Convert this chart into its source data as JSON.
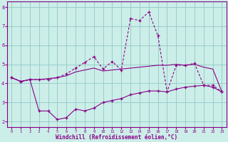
{
  "x": [
    0,
    1,
    2,
    3,
    4,
    5,
    6,
    7,
    8,
    9,
    10,
    11,
    12,
    13,
    14,
    15,
    16,
    17,
    18,
    19,
    20,
    21,
    22,
    23
  ],
  "line1": [
    4.3,
    4.1,
    4.2,
    2.55,
    2.55,
    2.1,
    2.2,
    2.65,
    2.55,
    2.7,
    3.0,
    3.1,
    3.2,
    3.4,
    3.5,
    3.6,
    3.6,
    3.55,
    3.7,
    3.8,
    3.85,
    3.9,
    3.8,
    3.55
  ],
  "line2": [
    4.3,
    4.1,
    4.2,
    4.2,
    4.2,
    4.3,
    4.5,
    4.8,
    5.1,
    5.4,
    4.75,
    5.15,
    4.7,
    7.4,
    7.3,
    7.75,
    6.5,
    3.55,
    4.95,
    4.95,
    5.05,
    3.9,
    3.9,
    3.55
  ],
  "line3": [
    4.3,
    4.1,
    4.2,
    4.2,
    4.25,
    4.3,
    4.4,
    4.6,
    4.7,
    4.8,
    4.65,
    4.7,
    4.75,
    4.8,
    4.85,
    4.9,
    4.95,
    4.95,
    5.0,
    4.95,
    5.0,
    4.85,
    4.75,
    3.55
  ],
  "color": "#880088",
  "bg_color": "#cceee8",
  "grid_color": "#99cccc",
  "xlabel": "Windchill (Refroidissement éolien,°C)",
  "ylim": [
    1.7,
    8.3
  ],
  "xlim": [
    -0.5,
    23.5
  ],
  "yticks": [
    2,
    3,
    4,
    5,
    6,
    7,
    8
  ],
  "xticks": [
    0,
    1,
    2,
    3,
    4,
    5,
    6,
    7,
    8,
    9,
    10,
    11,
    12,
    13,
    14,
    15,
    16,
    17,
    18,
    19,
    20,
    21,
    22,
    23
  ]
}
